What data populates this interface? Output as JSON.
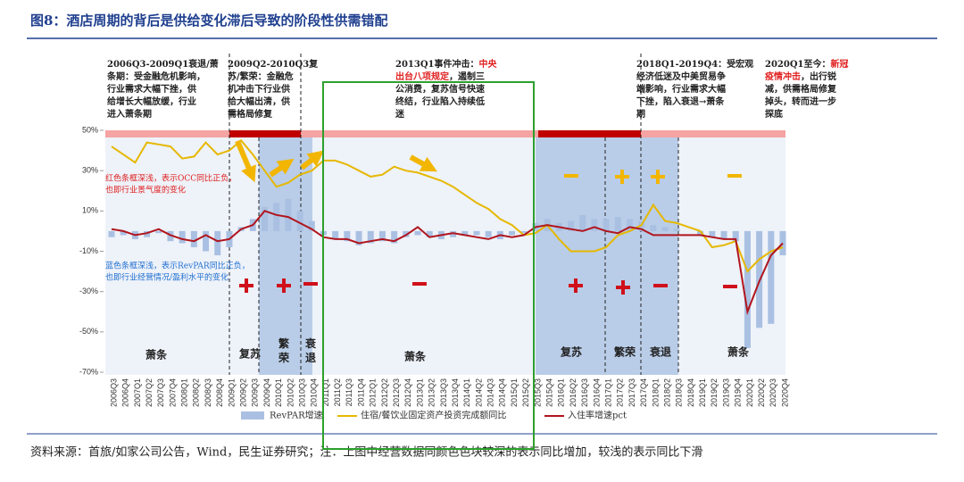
{
  "chart_data": {
    "type": "combo",
    "title": "图8：酒店周期的背后是供给变化滞后导致的阶段性供需错配",
    "source": "资料来源：首旅/如家公司公告，Wind，民生证券研究；注：上图中经营数据同颜色色块较深的表示同比增加，较浅的表示同比下滑",
    "categories": [
      "2006Q3",
      "2006Q4",
      "2007Q1",
      "2007Q2",
      "2007Q3",
      "2007Q4",
      "2008Q1",
      "2008Q2",
      "2008Q3",
      "2008Q4",
      "2009Q1",
      "2009Q2",
      "2009Q3",
      "2009Q4",
      "2010Q1",
      "2010Q2",
      "2010Q3",
      "2010Q4",
      "2011Q1",
      "2011Q2",
      "2011Q3",
      "2011Q4",
      "2012Q1",
      "2012Q2",
      "2012Q3",
      "2012Q4",
      "2013Q1",
      "2013Q2",
      "2013Q3",
      "2013Q4",
      "2014Q1",
      "2014Q2",
      "2014Q3",
      "2014Q4",
      "2015Q1",
      "2015Q2",
      "2015Q3",
      "2015Q4",
      "2016Q1",
      "2016Q2",
      "2016Q3",
      "2016Q4",
      "2017Q1",
      "2017Q2",
      "2017Q3",
      "2017Q4",
      "2018Q1",
      "2018Q2",
      "2018Q3",
      "2018Q4",
      "2019Q1",
      "2019Q2",
      "2019Q3",
      "2019Q4",
      "2020Q1",
      "2020Q2",
      "2020Q3",
      "2020Q4"
    ],
    "series": [
      {
        "name": "RevPAR增速",
        "type": "bar",
        "color": "#a9c0e2",
        "values": [
          -3,
          -2,
          -4,
          -3,
          -1,
          -5,
          -6,
          -8,
          -10,
          -12,
          -8,
          2,
          6,
          12,
          14,
          16,
          10,
          5,
          -2,
          -4,
          -5,
          -7,
          -6,
          -5,
          -6,
          -3,
          -2,
          -3,
          -4,
          -3,
          -2,
          -2,
          -3,
          -4,
          -2,
          -1,
          4,
          6,
          4,
          5,
          8,
          6,
          6,
          7,
          6,
          5,
          3,
          2,
          1,
          0,
          -2,
          -3,
          -4,
          -5,
          -58,
          -48,
          -46,
          -12
        ]
      },
      {
        "name": "住宿/餐饮业固定资产投资完成额同比",
        "type": "line",
        "color": "#e6b800",
        "values": [
          42,
          38,
          34,
          44,
          43,
          42,
          36,
          37,
          44,
          38,
          40,
          45,
          38,
          30,
          22,
          24,
          28,
          30,
          35,
          35,
          33,
          30,
          27,
          28,
          32,
          30,
          29,
          27,
          25,
          22,
          18,
          14,
          11,
          6,
          3,
          -2,
          -1,
          3,
          -4,
          -10,
          -10,
          -10,
          -8,
          -2,
          0,
          3,
          13,
          5,
          4,
          2,
          0,
          -8,
          -7,
          -5,
          -20,
          -14,
          -10,
          -8
        ]
      },
      {
        "name": "入住率增速pct",
        "type": "line",
        "color": "#b0151e",
        "values": [
          1,
          0,
          -2,
          -1,
          1,
          -2,
          -4,
          -5,
          -2,
          -5,
          -4,
          1,
          3,
          10,
          8,
          7,
          4,
          1,
          -3,
          -4,
          -4,
          -6,
          -5,
          -4,
          -5,
          -2,
          2,
          -3,
          -2,
          -1,
          -2,
          -3,
          -4,
          -2,
          -3,
          -2,
          2,
          3,
          2,
          1,
          0,
          2,
          0,
          -1,
          2,
          1,
          -2,
          -2,
          -2,
          -2,
          -2,
          -3,
          -4,
          -4,
          -40,
          -25,
          -12,
          -6
        ]
      }
    ],
    "ylim": [
      -70,
      50
    ],
    "yticks": [
      {
        "value": 50,
        "label": "50%"
      },
      {
        "value": 30,
        "label": "30%"
      },
      {
        "value": 10,
        "label": "10%"
      },
      {
        "value": -10,
        "label": "-10%"
      },
      {
        "value": -30,
        "label": "-30%"
      },
      {
        "value": -50,
        "label": "-50%"
      },
      {
        "value": -70,
        "label": "-70%"
      }
    ],
    "notes": [
      {
        "lines": [
          [
            {
              "text": "2006Q3-2009Q1衰退/萧",
              "color": "#222"
            }
          ],
          [
            {
              "text": "条期：受金融危机影响，",
              "color": "#222"
            }
          ],
          [
            {
              "text": "行业需求大幅下挫，供",
              "color": "#222"
            }
          ],
          [
            {
              "text": "给增长大幅放缓，行业",
              "color": "#222"
            }
          ],
          [
            {
              "text": "进入萧条期",
              "color": "#222"
            }
          ]
        ]
      },
      {
        "lines": [
          [
            {
              "text": "2009Q2-2010Q3复",
              "color": "#222"
            }
          ],
          [
            {
              "text": "苏/繁荣：金融危",
              "color": "#222"
            }
          ],
          [
            {
              "text": "机冲击下行业供",
              "color": "#222"
            }
          ],
          [
            {
              "text": "给大幅出清，供",
              "color": "#222"
            }
          ],
          [
            {
              "text": "需格局修复",
              "color": "#222"
            }
          ]
        ]
      },
      {
        "lines": [
          [
            {
              "text": "2013Q1事件冲击：",
              "color": "#222"
            },
            {
              "text": "中央",
              "color": "#e0201f"
            }
          ],
          [
            {
              "text": "出台八项规定",
              "color": "#e0201f"
            },
            {
              "text": "，遏制三",
              "color": "#222"
            }
          ],
          [
            {
              "text": "公消费，复苏信号快速",
              "color": "#222"
            }
          ],
          [
            {
              "text": "终结，行业陷入持续低",
              "color": "#222"
            }
          ],
          [
            {
              "text": "迷",
              "color": "#222"
            }
          ]
        ]
      },
      {
        "lines": [
          [
            {
              "text": "2018Q1-2019Q4：受宏观",
              "color": "#222"
            }
          ],
          [
            {
              "text": "经济低迷及中美贸易争",
              "color": "#222"
            }
          ],
          [
            {
              "text": "端影响，行业需求大幅",
              "color": "#222"
            }
          ],
          [
            {
              "text": "下挫，陷入衰退→萧条",
              "color": "#222"
            }
          ],
          [
            {
              "text": "期",
              "color": "#222"
            }
          ]
        ]
      },
      {
        "lines": [
          [
            {
              "text": "2020Q1至今：",
              "color": "#222"
            },
            {
              "text": "新冠",
              "color": "#e0201f"
            }
          ],
          [
            {
              "text": "疫情冲击",
              "color": "#e0201f"
            },
            {
              "text": "，出行锐",
              "color": "#222"
            }
          ],
          [
            {
              "text": "减，供需格局修复",
              "color": "#222"
            }
          ],
          [
            {
              "text": "掉头，转而进一步",
              "color": "#222"
            }
          ],
          [
            {
              "text": "探底",
              "color": "#222"
            }
          ]
        ]
      }
    ],
    "inner_notes": [
      {
        "lines": [
          "红色条框深浅，表示OCC同比正负，",
          "也即行业景气度的变化"
        ],
        "color": "#e0201f"
      },
      {
        "lines": [
          "蓝色条框深浅，表示RevPAR同比正负，",
          "也即行业经营情况/盈利水平的变化"
        ],
        "color": "#1f6fd0"
      }
    ],
    "phases": [
      "萧条",
      "复苏",
      "繁荣",
      "衰退",
      "萧条",
      "复苏",
      "繁荣",
      "衰退",
      "萧条"
    ]
  }
}
